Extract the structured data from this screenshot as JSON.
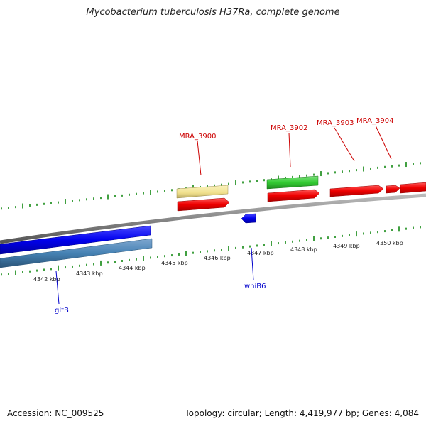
{
  "title": "Mycobacterium tuberculosis H37Ra, complete genome",
  "footer": {
    "accession": "Accession: NC_009525",
    "summary": "Topology: circular; Length: 4,419,977 bp; Genes: 4,084"
  },
  "scale_labels": [
    "4342 kbp",
    "4343 kbp",
    "4344 kbp",
    "4345 kbp",
    "4346 kbp",
    "4347 kbp",
    "4348 kbp",
    "4349 kbp",
    "4350 kbp"
  ],
  "gene_labels": [
    {
      "text": "MRA_3900",
      "color": "#cc0000"
    },
    {
      "text": "MRA_3902",
      "color": "#cc0000"
    },
    {
      "text": "MRA_3903",
      "color": "#cc0000"
    },
    {
      "text": "MRA_3904",
      "color": "#cc0000"
    },
    {
      "text": "gltB",
      "color": "#0000cc"
    },
    {
      "text": "whiB6",
      "color": "#0000cc"
    }
  ],
  "colors": {
    "backbone": "#888888",
    "forward_cds": "#ff0000",
    "reverse_cds": "#0000ff",
    "reverse_cds_alt": "#4682b4",
    "forward_rna": "#33cc33",
    "forward_misc": "#f0e68c",
    "tick": "#118811"
  }
}
